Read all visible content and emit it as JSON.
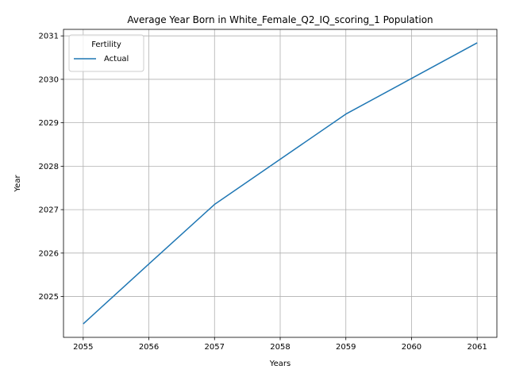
{
  "chart_data": {
    "type": "line",
    "title": "Average Year Born in White_Female_Q2_IQ_scoring_1 Population",
    "xlabel": "Years",
    "ylabel": "Year",
    "x": [
      2055,
      2056,
      2057,
      2058,
      2059,
      2060,
      2061
    ],
    "xlim": [
      2054.7,
      2061.3
    ],
    "ylim": [
      2024.06,
      2031.15
    ],
    "xticks": [
      "2055",
      "2056",
      "2057",
      "2058",
      "2059",
      "2060",
      "2061"
    ],
    "yticks": [
      "2025",
      "2026",
      "2027",
      "2028",
      "2029",
      "2030",
      "2031"
    ],
    "grid": true,
    "legend": {
      "title": "Fertility",
      "placement": "top-left",
      "entries": [
        "Actual"
      ]
    },
    "series": [
      {
        "name": "Actual",
        "color": "#1f77b4",
        "values": [
          2024.37,
          2025.75,
          2027.12,
          2028.16,
          2029.2,
          2030.02,
          2030.84
        ]
      }
    ]
  }
}
